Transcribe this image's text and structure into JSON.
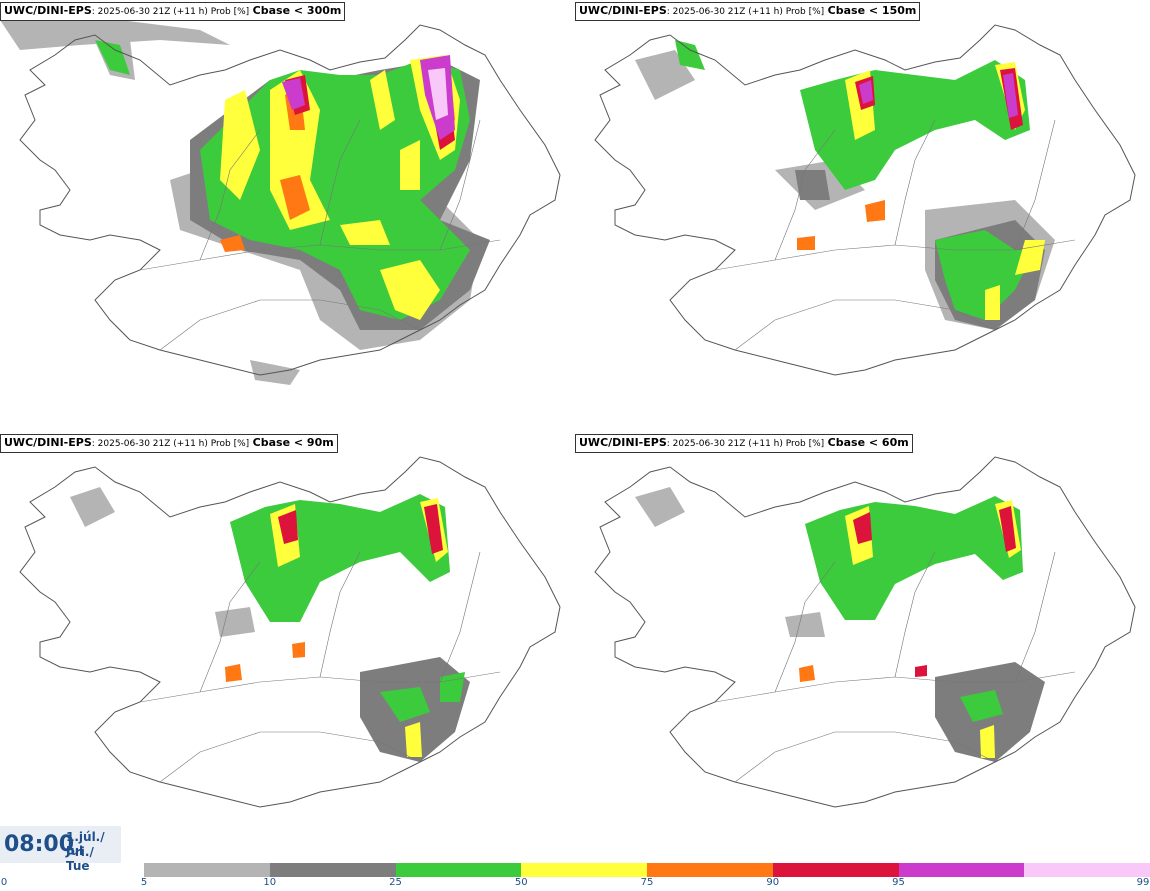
{
  "panels": [
    {
      "source": "UWC/DINI-EPS",
      "meta": ": 2025-06-30 21Z (+11 h) Prob [%]",
      "threshold": "Cbase < 300m"
    },
    {
      "source": "UWC/DINI-EPS",
      "meta": ": 2025-06-30 21Z (+11 h) Prob [%]",
      "threshold": "Cbase < 150m"
    },
    {
      "source": "UWC/DINI-EPS",
      "meta": ": 2025-06-30 21Z (+11 h) Prob [%]",
      "threshold": "Cbase < 90m"
    },
    {
      "source": "UWC/DINI-EPS",
      "meta": ": 2025-06-30 21Z (+11 h) Prob [%]",
      "threshold": "Cbase < 60m"
    }
  ],
  "valid_time": {
    "time": "08:00",
    "date_line1": "1.júl./ Jul",
    "date_line2": "Þri./ Tue"
  },
  "legend": {
    "ticks": [
      "0",
      "5",
      "10",
      "25",
      "50",
      "75",
      "90",
      "95",
      "99"
    ],
    "colors": [
      "#b4b4b4",
      "#7d7d7d",
      "#3ccb3c",
      "#ffff3c",
      "#ff7814",
      "#dc143c",
      "#cc3ccc",
      "#f8c8f8"
    ]
  }
}
